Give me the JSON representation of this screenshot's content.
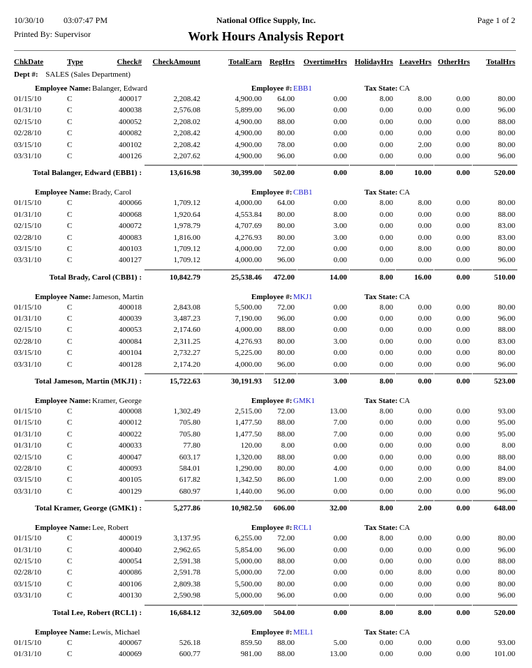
{
  "header": {
    "date": "10/30/10",
    "time": "03:07:47 PM",
    "company": "National Office Supply, Inc.",
    "page": "Page 1 of 2",
    "printed_by": "Printed By: Supervisor",
    "title": "Work Hours Analysis Report"
  },
  "columns": [
    "ChkDate",
    "Type",
    "Check#",
    "CheckAmount",
    "TotalEarn",
    "RegHrs",
    "OvertimeHrs",
    "HolidayHrs",
    "LeaveHrs",
    "OtherHrs",
    "TotalHrs"
  ],
  "dept": {
    "label": "Dept #:",
    "value": "SALES (Sales Department)"
  },
  "labels": {
    "employee_name": "Employee Name:",
    "employee_num": "Employee #:",
    "tax_state": "Tax State:"
  },
  "colors": {
    "link": "#2020d0",
    "rule": "#8a8a8a"
  },
  "employees": [
    {
      "name": "Balanger, Edward",
      "id": "EBB1",
      "tax_state": "CA",
      "rows": [
        [
          "01/15/10",
          "C",
          "400017",
          "2,208.42",
          "4,900.00",
          "64.00",
          "0.00",
          "8.00",
          "8.00",
          "0.00",
          "80.00"
        ],
        [
          "01/31/10",
          "C",
          "400038",
          "2,576.08",
          "5,899.00",
          "96.00",
          "0.00",
          "0.00",
          "0.00",
          "0.00",
          "96.00"
        ],
        [
          "02/15/10",
          "C",
          "400052",
          "2,208.02",
          "4,900.00",
          "88.00",
          "0.00",
          "0.00",
          "0.00",
          "0.00",
          "88.00"
        ],
        [
          "02/28/10",
          "C",
          "400082",
          "2,208.42",
          "4,900.00",
          "80.00",
          "0.00",
          "0.00",
          "0.00",
          "0.00",
          "80.00"
        ],
        [
          "03/15/10",
          "C",
          "400102",
          "2,208.42",
          "4,900.00",
          "78.00",
          "0.00",
          "0.00",
          "2.00",
          "0.00",
          "80.00"
        ],
        [
          "03/31/10",
          "C",
          "400126",
          "2,207.62",
          "4,900.00",
          "96.00",
          "0.00",
          "0.00",
          "0.00",
          "0.00",
          "96.00"
        ]
      ],
      "total_label": "Total Balanger, Edward (EBB1) :",
      "totals": [
        "13,616.98",
        "30,399.00",
        "502.00",
        "0.00",
        "8.00",
        "10.00",
        "0.00",
        "520.00"
      ]
    },
    {
      "name": "Brady, Carol",
      "id": "CBB1",
      "tax_state": "CA",
      "rows": [
        [
          "01/15/10",
          "C",
          "400066",
          "1,709.12",
          "4,000.00",
          "64.00",
          "0.00",
          "8.00",
          "8.00",
          "0.00",
          "80.00"
        ],
        [
          "01/31/10",
          "C",
          "400068",
          "1,920.64",
          "4,553.84",
          "80.00",
          "8.00",
          "0.00",
          "0.00",
          "0.00",
          "88.00"
        ],
        [
          "02/15/10",
          "C",
          "400072",
          "1,978.79",
          "4,707.69",
          "80.00",
          "3.00",
          "0.00",
          "0.00",
          "0.00",
          "83.00"
        ],
        [
          "02/28/10",
          "C",
          "400083",
          "1,816.00",
          "4,276.93",
          "80.00",
          "3.00",
          "0.00",
          "0.00",
          "0.00",
          "83.00"
        ],
        [
          "03/15/10",
          "C",
          "400103",
          "1,709.12",
          "4,000.00",
          "72.00",
          "0.00",
          "0.00",
          "8.00",
          "0.00",
          "80.00"
        ],
        [
          "03/31/10",
          "C",
          "400127",
          "1,709.12",
          "4,000.00",
          "96.00",
          "0.00",
          "0.00",
          "0.00",
          "0.00",
          "96.00"
        ]
      ],
      "total_label": "Total Brady, Carol (CBB1) :",
      "totals": [
        "10,842.79",
        "25,538.46",
        "472.00",
        "14.00",
        "8.00",
        "16.00",
        "0.00",
        "510.00"
      ]
    },
    {
      "name": "Jameson, Martin",
      "id": "MKJ1",
      "tax_state": "CA",
      "rows": [
        [
          "01/15/10",
          "C",
          "400018",
          "2,843.08",
          "5,500.00",
          "72.00",
          "0.00",
          "8.00",
          "0.00",
          "0.00",
          "80.00"
        ],
        [
          "01/31/10",
          "C",
          "400039",
          "3,487.23",
          "7,190.00",
          "96.00",
          "0.00",
          "0.00",
          "0.00",
          "0.00",
          "96.00"
        ],
        [
          "02/15/10",
          "C",
          "400053",
          "2,174.60",
          "4,000.00",
          "88.00",
          "0.00",
          "0.00",
          "0.00",
          "0.00",
          "88.00"
        ],
        [
          "02/28/10",
          "C",
          "400084",
          "2,311.25",
          "4,276.93",
          "80.00",
          "3.00",
          "0.00",
          "0.00",
          "0.00",
          "83.00"
        ],
        [
          "03/15/10",
          "C",
          "400104",
          "2,732.27",
          "5,225.00",
          "80.00",
          "0.00",
          "0.00",
          "0.00",
          "0.00",
          "80.00"
        ],
        [
          "03/31/10",
          "C",
          "400128",
          "2,174.20",
          "4,000.00",
          "96.00",
          "0.00",
          "0.00",
          "0.00",
          "0.00",
          "96.00"
        ]
      ],
      "total_label": "Total Jameson, Martin (MKJ1) :",
      "totals": [
        "15,722.63",
        "30,191.93",
        "512.00",
        "3.00",
        "8.00",
        "0.00",
        "0.00",
        "523.00"
      ]
    },
    {
      "name": "Kramer, George",
      "id": "GMK1",
      "tax_state": "CA",
      "rows": [
        [
          "01/15/10",
          "C",
          "400008",
          "1,302.49",
          "2,515.00",
          "72.00",
          "13.00",
          "8.00",
          "0.00",
          "0.00",
          "93.00"
        ],
        [
          "01/15/10",
          "C",
          "400012",
          "705.80",
          "1,477.50",
          "88.00",
          "7.00",
          "0.00",
          "0.00",
          "0.00",
          "95.00"
        ],
        [
          "01/31/10",
          "C",
          "400022",
          "705.80",
          "1,477.50",
          "88.00",
          "7.00",
          "0.00",
          "0.00",
          "0.00",
          "95.00"
        ],
        [
          "01/31/10",
          "C",
          "400033",
          "77.80",
          "120.00",
          "8.00",
          "0.00",
          "0.00",
          "0.00",
          "0.00",
          "8.00"
        ],
        [
          "02/15/10",
          "C",
          "400047",
          "603.17",
          "1,320.00",
          "88.00",
          "0.00",
          "0.00",
          "0.00",
          "0.00",
          "88.00"
        ],
        [
          "02/28/10",
          "C",
          "400093",
          "584.01",
          "1,290.00",
          "80.00",
          "4.00",
          "0.00",
          "0.00",
          "0.00",
          "84.00"
        ],
        [
          "03/15/10",
          "C",
          "400105",
          "617.82",
          "1,342.50",
          "86.00",
          "1.00",
          "0.00",
          "2.00",
          "0.00",
          "89.00"
        ],
        [
          "03/31/10",
          "C",
          "400129",
          "680.97",
          "1,440.00",
          "96.00",
          "0.00",
          "0.00",
          "0.00",
          "0.00",
          "96.00"
        ]
      ],
      "total_label": "Total Kramer, George (GMK1) :",
      "totals": [
        "5,277.86",
        "10,982.50",
        "606.00",
        "32.00",
        "8.00",
        "2.00",
        "0.00",
        "648.00"
      ]
    },
    {
      "name": "Lee, Robert",
      "id": "RCL1",
      "tax_state": "CA",
      "rows": [
        [
          "01/15/10",
          "C",
          "400019",
          "3,137.95",
          "6,255.00",
          "72.00",
          "0.00",
          "8.00",
          "0.00",
          "0.00",
          "80.00"
        ],
        [
          "01/31/10",
          "C",
          "400040",
          "2,962.65",
          "5,854.00",
          "96.00",
          "0.00",
          "0.00",
          "0.00",
          "0.00",
          "96.00"
        ],
        [
          "02/15/10",
          "C",
          "400054",
          "2,591.38",
          "5,000.00",
          "88.00",
          "0.00",
          "0.00",
          "0.00",
          "0.00",
          "88.00"
        ],
        [
          "02/28/10",
          "C",
          "400086",
          "2,591.78",
          "5,000.00",
          "72.00",
          "0.00",
          "0.00",
          "8.00",
          "0.00",
          "80.00"
        ],
        [
          "03/15/10",
          "C",
          "400106",
          "2,809.38",
          "5,500.00",
          "80.00",
          "0.00",
          "0.00",
          "0.00",
          "0.00",
          "80.00"
        ],
        [
          "03/31/10",
          "C",
          "400130",
          "2,590.98",
          "5,000.00",
          "96.00",
          "0.00",
          "0.00",
          "0.00",
          "0.00",
          "96.00"
        ]
      ],
      "total_label": "Total Lee, Robert (RCL1) :",
      "totals": [
        "16,684.12",
        "32,609.00",
        "504.00",
        "0.00",
        "8.00",
        "8.00",
        "0.00",
        "520.00"
      ]
    },
    {
      "name": "Lewis, Michael",
      "id": "MEL1",
      "tax_state": "CA",
      "rows": [
        [
          "01/15/10",
          "C",
          "400067",
          "526.18",
          "859.50",
          "88.00",
          "5.00",
          "0.00",
          "0.00",
          "0.00",
          "93.00"
        ],
        [
          "01/31/10",
          "C",
          "400069",
          "600.77",
          "981.00",
          "88.00",
          "13.00",
          "0.00",
          "0.00",
          "0.00",
          "101.00"
        ]
      ]
    }
  ]
}
